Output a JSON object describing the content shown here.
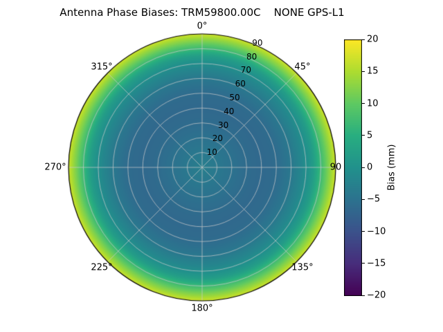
{
  "title": "Antenna Phase Biases: TRM59800.00C    NONE GPS-L1",
  "chart_data": {
    "type": "heatmap",
    "projection": "polar",
    "title": "Antenna Phase Biases: TRM59800.00C    NONE GPS-L1",
    "azimuth_labels": [
      "0°",
      "45°",
      "90",
      "135°",
      "180°",
      "225°",
      "270°",
      "315°"
    ],
    "zenith_ticks": [
      10,
      20,
      30,
      40,
      50,
      60,
      70,
      80,
      90
    ],
    "radial_profile": {
      "description": "azimuthally symmetric phase bias vs zenith angle",
      "zenith_deg": [
        0,
        10,
        20,
        30,
        40,
        50,
        60,
        70,
        75,
        80,
        85,
        90
      ],
      "bias_mm": [
        -3,
        -4,
        -5,
        -6,
        -6.5,
        -6,
        -4,
        -0.5,
        2,
        7,
        12,
        17
      ]
    },
    "value_range": [
      -20,
      20
    ],
    "grid": true,
    "grid_color": "#cccccc",
    "edge_color": "#000000",
    "colorbar": {
      "label": "Bias (mm)",
      "tick_labels": [
        "20",
        "15",
        "10",
        "5",
        "0",
        "−5",
        "−10",
        "−15",
        "−20"
      ],
      "min": -20,
      "max": 20,
      "position": "right"
    },
    "colormap": {
      "name": "viridis",
      "stops": [
        {
          "pos": 0.0,
          "color": "#440154"
        },
        {
          "pos": 0.125,
          "color": "#472d7b"
        },
        {
          "pos": 0.25,
          "color": "#3b528b"
        },
        {
          "pos": 0.375,
          "color": "#2c728e"
        },
        {
          "pos": 0.5,
          "color": "#21918c"
        },
        {
          "pos": 0.625,
          "color": "#28ae80"
        },
        {
          "pos": 0.75,
          "color": "#5ec962"
        },
        {
          "pos": 0.875,
          "color": "#addc30"
        },
        {
          "pos": 1.0,
          "color": "#fde725"
        }
      ]
    }
  }
}
